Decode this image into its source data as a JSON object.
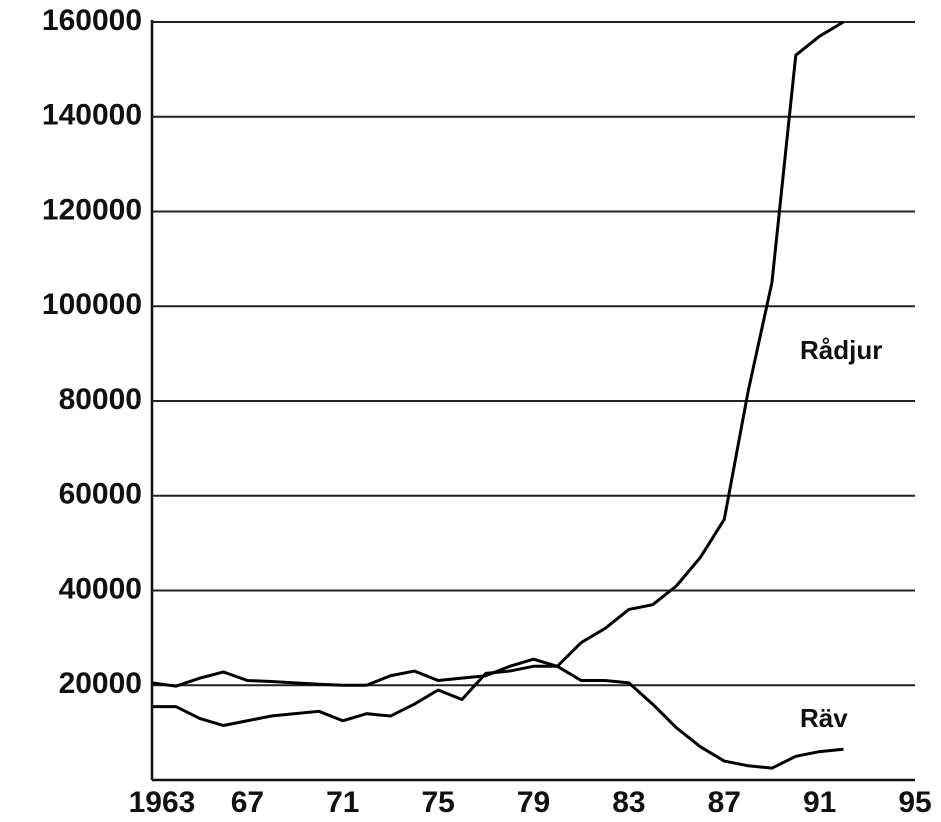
{
  "chart_data": {
    "type": "line",
    "x": [
      1963,
      1964,
      1965,
      1966,
      1967,
      1968,
      1969,
      1970,
      1971,
      1972,
      1973,
      1974,
      1975,
      1976,
      1977,
      1978,
      1979,
      1980,
      1981,
      1982,
      1983,
      1984,
      1985,
      1986,
      1987,
      1988,
      1989,
      1990,
      1991,
      1992
    ],
    "series": [
      {
        "name": "Rådjur",
        "color": "#000000",
        "values": [
          20500,
          19800,
          21500,
          22800,
          21000,
          20800,
          20500,
          20200,
          20000,
          20000,
          22000,
          23000,
          21000,
          21500,
          22000,
          24000,
          25500,
          24000,
          29000,
          32000,
          36000,
          37000,
          41000,
          47000,
          55000,
          82000,
          105000,
          153000,
          157000,
          160000
        ]
      },
      {
        "name": "Räv",
        "color": "#000000",
        "values": [
          15500,
          15500,
          13000,
          11500,
          12500,
          13500,
          14000,
          14500,
          12500,
          14000,
          13500,
          16000,
          19000,
          17000,
          22500,
          23000,
          24000,
          24000,
          21000,
          21000,
          20500,
          16000,
          11000,
          7000,
          4000,
          3000,
          2500,
          5000,
          6000,
          6500
        ]
      }
    ],
    "xlim": [
      1963,
      1995
    ],
    "xticks": [
      1963,
      {
        "value": 1967,
        "label": "67"
      },
      {
        "value": 1971,
        "label": "71"
      },
      {
        "value": 1975,
        "label": "75"
      },
      {
        "value": 1979,
        "label": "79"
      },
      {
        "value": 1983,
        "label": "83"
      },
      {
        "value": 1987,
        "label": "87"
      },
      {
        "value": 1991,
        "label": "91"
      },
      {
        "value": 1995,
        "label": "95"
      }
    ],
    "ylim": [
      0,
      160000
    ],
    "yticks": [
      20000,
      40000,
      60000,
      80000,
      100000,
      120000,
      140000,
      160000
    ],
    "grid": true
  }
}
